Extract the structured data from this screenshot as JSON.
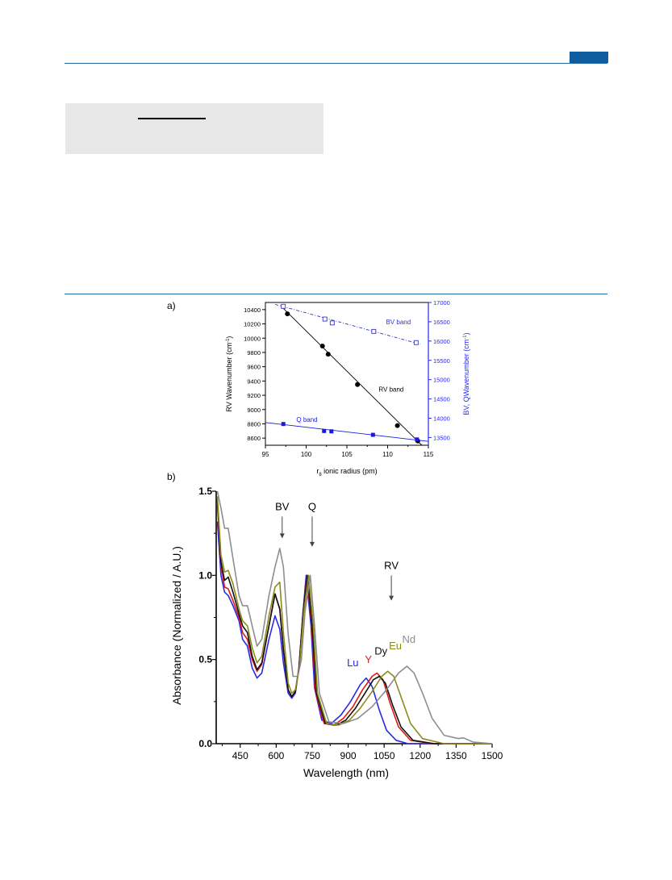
{
  "figure": {
    "panel_a_label": "a)",
    "panel_b_label": "b)"
  },
  "chart_data": [
    {
      "type": "scatter",
      "panel": "a)",
      "xlabel_main": "r",
      "xlabel_sub": "8",
      "xlabel_rest": " ionic radius (pm)",
      "ylabel_left": "RV Wavenumber (cm",
      "ylabel_left_sup": "-1",
      "ylabel_left_end": ")",
      "ylabel_right": "BV, QWavenumber (cm",
      "ylabel_right_sup": "-1",
      "ylabel_right_end": ")",
      "xlim": [
        95,
        115
      ],
      "ylim_left": [
        8500,
        10500
      ],
      "ylim_right": [
        13300,
        17000
      ],
      "x_ticks": [
        "95",
        "100",
        "105",
        "110",
        "115"
      ],
      "y_left_ticks": [
        "8600",
        "8800",
        "9000",
        "9200",
        "9400",
        "9600",
        "9800",
        "10000",
        "10200",
        "10400"
      ],
      "y_right_ticks": [
        "13500",
        "14000",
        "14500",
        "15000",
        "15500",
        "16000",
        "16500",
        "17000"
      ],
      "series": [
        {
          "name": "RV band",
          "axis": "left",
          "marker": "filled-circle",
          "color": "#000000",
          "points": [
            [
              97.7,
              10340
            ],
            [
              102.0,
              9890
            ],
            [
              102.7,
              9775
            ],
            [
              106.3,
              9350
            ],
            [
              111.2,
              8775
            ],
            [
              113.7,
              8560
            ]
          ],
          "fit": [
            [
              97.0,
              10440
            ],
            [
              114.2,
              8500
            ]
          ]
        },
        {
          "name": "BV band",
          "axis": "right",
          "marker": "open-square",
          "color": "#3333cc",
          "points": [
            [
              97.2,
              16900
            ],
            [
              102.3,
              16570
            ],
            [
              103.2,
              16470
            ],
            [
              108.3,
              16250
            ],
            [
              113.5,
              15960
            ]
          ],
          "fit": [
            [
              96.2,
              16950
            ],
            [
              114.0,
              15920
            ]
          ]
        },
        {
          "name": "Q band",
          "axis": "right",
          "marker": "filled-square",
          "color": "#1a1adf",
          "points": [
            [
              97.2,
              13850
            ],
            [
              102.2,
              13670
            ],
            [
              103.1,
              13660
            ],
            [
              108.2,
              13570
            ],
            [
              113.6,
              13450
            ]
          ],
          "fit": [
            [
              95.0,
              13890
            ],
            [
              115.0,
              13400
            ]
          ]
        }
      ],
      "annotations": [
        {
          "text": "BV band",
          "x": 109.8,
          "y": 16440,
          "axis": "right",
          "color": "#3333cc"
        },
        {
          "text": "RV band",
          "x": 108.9,
          "y": 9250,
          "axis": "left",
          "color": "#000000"
        },
        {
          "text": "Q band",
          "x": 98.8,
          "y": 13910,
          "axis": "right",
          "color": "#1a1adf"
        }
      ]
    },
    {
      "type": "line",
      "panel": "b)",
      "xlabel": "Wavelength (nm)",
      "ylabel": "Absorbance (Normalized / A.U.)",
      "xlim": [
        350,
        1500
      ],
      "ylim": [
        0,
        1.5
      ],
      "x_ticks": [
        450,
        600,
        750,
        900,
        1050,
        1200,
        1350,
        1500
      ],
      "y_ticks": [
        0.0,
        0.5,
        1.0,
        1.5
      ],
      "y_tick_labels": [
        "0.0",
        "0.5",
        "1.0",
        "1.5"
      ],
      "x_tick_labels": [
        "450",
        "600",
        "750",
        "900",
        "1050",
        "1200",
        "1350",
        "1500"
      ],
      "band_markers": [
        {
          "label": "BV",
          "x": 625,
          "y_start": 1.35,
          "y_end": 1.22
        },
        {
          "label": "Q",
          "x": 750,
          "y_start": 1.35,
          "y_end": 1.17
        },
        {
          "label": "RV",
          "x": 1080,
          "y_start": 1.0,
          "y_end": 0.85
        }
      ],
      "series": [
        {
          "name": "Lu",
          "color": "#2a2ae6",
          "label_x": 895,
          "label_y": 0.46,
          "points": [
            [
              355,
              1.32
            ],
            [
              370,
              1.0
            ],
            [
              385,
              0.9
            ],
            [
              400,
              0.88
            ],
            [
              420,
              0.82
            ],
            [
              445,
              0.73
            ],
            [
              460,
              0.62
            ],
            [
              480,
              0.58
            ],
            [
              500,
              0.45
            ],
            [
              520,
              0.39
            ],
            [
              540,
              0.42
            ],
            [
              570,
              0.62
            ],
            [
              595,
              0.76
            ],
            [
              615,
              0.68
            ],
            [
              630,
              0.48
            ],
            [
              650,
              0.3
            ],
            [
              665,
              0.27
            ],
            [
              680,
              0.3
            ],
            [
              695,
              0.45
            ],
            [
              710,
              0.75
            ],
            [
              725,
              1.0
            ],
            [
              745,
              0.7
            ],
            [
              760,
              0.33
            ],
            [
              790,
              0.14
            ],
            [
              830,
              0.12
            ],
            [
              870,
              0.17
            ],
            [
              910,
              0.25
            ],
            [
              950,
              0.35
            ],
            [
              975,
              0.39
            ],
            [
              1000,
              0.34
            ],
            [
              1030,
              0.2
            ],
            [
              1060,
              0.08
            ],
            [
              1100,
              0.02
            ],
            [
              1150,
              0.0
            ],
            [
              1500,
              0.0
            ]
          ]
        },
        {
          "name": "Y",
          "color": "#e01818",
          "label_x": 970,
          "label_y": 0.48,
          "points": [
            [
              355,
              1.42
            ],
            [
              370,
              1.06
            ],
            [
              385,
              0.93
            ],
            [
              400,
              0.92
            ],
            [
              420,
              0.85
            ],
            [
              445,
              0.75
            ],
            [
              460,
              0.66
            ],
            [
              480,
              0.62
            ],
            [
              500,
              0.5
            ],
            [
              520,
              0.43
            ],
            [
              540,
              0.47
            ],
            [
              570,
              0.7
            ],
            [
              595,
              0.89
            ],
            [
              615,
              0.8
            ],
            [
              630,
              0.56
            ],
            [
              650,
              0.32
            ],
            [
              665,
              0.28
            ],
            [
              680,
              0.31
            ],
            [
              695,
              0.45
            ],
            [
              712,
              0.78
            ],
            [
              728,
              1.0
            ],
            [
              748,
              0.7
            ],
            [
              765,
              0.3
            ],
            [
              800,
              0.12
            ],
            [
              840,
              0.11
            ],
            [
              880,
              0.15
            ],
            [
              920,
              0.22
            ],
            [
              960,
              0.32
            ],
            [
              1000,
              0.4
            ],
            [
              1020,
              0.42
            ],
            [
              1045,
              0.38
            ],
            [
              1075,
              0.24
            ],
            [
              1110,
              0.1
            ],
            [
              1160,
              0.02
            ],
            [
              1250,
              0.0
            ],
            [
              1500,
              0.0
            ]
          ]
        },
        {
          "name": "Dy",
          "color": "#111111",
          "label_x": 1010,
          "label_y": 0.53,
          "points": [
            [
              355,
              1.45
            ],
            [
              370,
              1.08
            ],
            [
              385,
              0.97
            ],
            [
              400,
              0.99
            ],
            [
              420,
              0.9
            ],
            [
              445,
              0.77
            ],
            [
              460,
              0.7
            ],
            [
              480,
              0.66
            ],
            [
              500,
              0.52
            ],
            [
              520,
              0.44
            ],
            [
              540,
              0.48
            ],
            [
              570,
              0.7
            ],
            [
              595,
              0.89
            ],
            [
              615,
              0.8
            ],
            [
              630,
              0.56
            ],
            [
              650,
              0.32
            ],
            [
              665,
              0.28
            ],
            [
              680,
              0.31
            ],
            [
              695,
              0.45
            ],
            [
              712,
              0.78
            ],
            [
              730,
              1.0
            ],
            [
              750,
              0.7
            ],
            [
              768,
              0.3
            ],
            [
              805,
              0.12
            ],
            [
              850,
              0.11
            ],
            [
              890,
              0.14
            ],
            [
              930,
              0.21
            ],
            [
              970,
              0.3
            ],
            [
              1005,
              0.38
            ],
            [
              1030,
              0.4
            ],
            [
              1055,
              0.36
            ],
            [
              1085,
              0.23
            ],
            [
              1120,
              0.1
            ],
            [
              1170,
              0.02
            ],
            [
              1260,
              0.0
            ],
            [
              1500,
              0.0
            ]
          ]
        },
        {
          "name": "Eu",
          "color": "#8b8b1a",
          "label_x": 1070,
          "label_y": 0.56,
          "points": [
            [
              355,
              1.47
            ],
            [
              370,
              1.12
            ],
            [
              385,
              1.02
            ],
            [
              400,
              1.03
            ],
            [
              420,
              0.95
            ],
            [
              445,
              0.8
            ],
            [
              460,
              0.73
            ],
            [
              480,
              0.7
            ],
            [
              500,
              0.57
            ],
            [
              520,
              0.48
            ],
            [
              540,
              0.52
            ],
            [
              570,
              0.76
            ],
            [
              595,
              0.93
            ],
            [
              615,
              0.96
            ],
            [
              630,
              0.66
            ],
            [
              650,
              0.36
            ],
            [
              665,
              0.3
            ],
            [
              680,
              0.32
            ],
            [
              697,
              0.45
            ],
            [
              715,
              0.78
            ],
            [
              735,
              1.0
            ],
            [
              755,
              0.7
            ],
            [
              772,
              0.3
            ],
            [
              810,
              0.12
            ],
            [
              860,
              0.11
            ],
            [
              905,
              0.14
            ],
            [
              950,
              0.21
            ],
            [
              1000,
              0.31
            ],
            [
              1040,
              0.4
            ],
            [
              1065,
              0.43
            ],
            [
              1090,
              0.4
            ],
            [
              1120,
              0.28
            ],
            [
              1160,
              0.12
            ],
            [
              1210,
              0.03
            ],
            [
              1300,
              0.0
            ],
            [
              1500,
              0.0
            ]
          ]
        },
        {
          "name": "Nd",
          "color": "#8e8e8e",
          "label_x": 1125,
          "label_y": 0.6,
          "points": [
            [
              355,
              1.5
            ],
            [
              370,
              1.4
            ],
            [
              385,
              1.28
            ],
            [
              400,
              1.28
            ],
            [
              420,
              1.1
            ],
            [
              445,
              0.88
            ],
            [
              460,
              0.82
            ],
            [
              480,
              0.82
            ],
            [
              500,
              0.7
            ],
            [
              520,
              0.58
            ],
            [
              540,
              0.62
            ],
            [
              570,
              0.88
            ],
            [
              595,
              1.05
            ],
            [
              615,
              1.16
            ],
            [
              630,
              1.05
            ],
            [
              650,
              0.65
            ],
            [
              670,
              0.4
            ],
            [
              690,
              0.4
            ],
            [
              705,
              0.5
            ],
            [
              720,
              0.78
            ],
            [
              742,
              1.0
            ],
            [
              760,
              0.7
            ],
            [
              780,
              0.3
            ],
            [
              820,
              0.13
            ],
            [
              880,
              0.12
            ],
            [
              940,
              0.15
            ],
            [
              1000,
              0.22
            ],
            [
              1060,
              0.32
            ],
            [
              1110,
              0.42
            ],
            [
              1145,
              0.46
            ],
            [
              1175,
              0.42
            ],
            [
              1210,
              0.3
            ],
            [
              1250,
              0.15
            ],
            [
              1300,
              0.05
            ],
            [
              1360,
              0.03
            ],
            [
              1380,
              0.035
            ],
            [
              1420,
              0.01
            ],
            [
              1500,
              0.0
            ]
          ]
        }
      ]
    }
  ]
}
